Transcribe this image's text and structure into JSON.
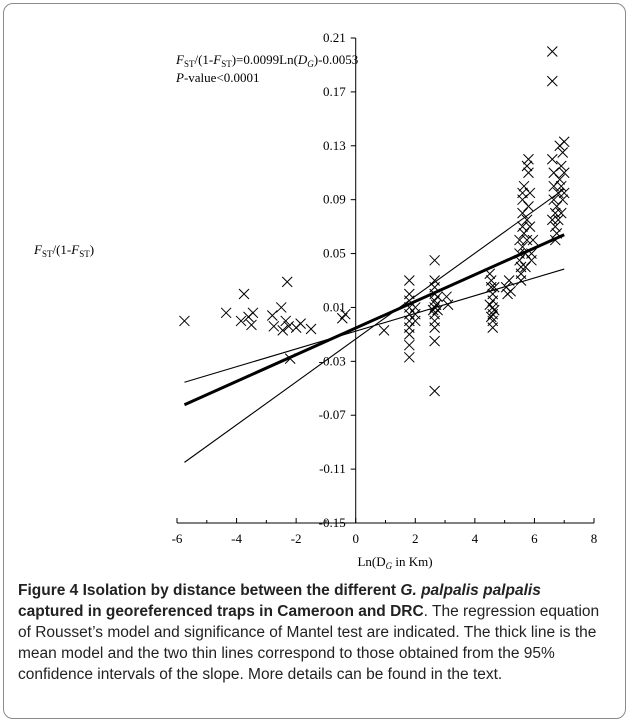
{
  "chart_data": {
    "type": "scatter",
    "ylabel": {
      "pre": "F",
      "sub": "ST",
      "mid": "/(1-",
      "pre2": "F",
      "sub2": "ST",
      "post": ")"
    },
    "xlabel": {
      "pre": "Ln(D",
      "sub": "G",
      "post": " in Km)"
    },
    "xlim": [
      -6,
      8
    ],
    "ylim": [
      -0.15,
      0.21
    ],
    "x_ticks": [
      "-6",
      "-4",
      "-2",
      "0",
      "2",
      "4",
      "6",
      "8"
    ],
    "y_ticks": [
      "0.21",
      "0.17",
      "0.13",
      "0.09",
      "0.05",
      "0.01",
      "-0.03",
      "-0.07",
      "-0.11",
      "-0.15"
    ],
    "annotation": {
      "equation": {
        "f1": "F",
        "s1": "ST",
        "m1": "/(1-",
        "f2": "F",
        "s2": "ST",
        "m2": ")=0.0099Ln(",
        "d": "D",
        "s3": "G",
        "m3": ")-0.0053"
      },
      "pvalue": {
        "p": "P",
        "rest": "-value<0.0001"
      }
    },
    "points": [
      [
        -5.75,
        0.0
      ],
      [
        -4.35,
        0.006
      ],
      [
        -3.85,
        0.0
      ],
      [
        -3.75,
        0.02
      ],
      [
        -3.6,
        0.003
      ],
      [
        -3.5,
        -0.003
      ],
      [
        -3.45,
        0.006
      ],
      [
        -2.8,
        0.004
      ],
      [
        -2.75,
        -0.004
      ],
      [
        -2.5,
        0.01
      ],
      [
        -2.45,
        -0.007
      ],
      [
        -2.35,
        0.0
      ],
      [
        -2.25,
        -0.004
      ],
      [
        -2.3,
        0.029
      ],
      [
        -2.2,
        -0.028
      ],
      [
        -2.0,
        -0.005
      ],
      [
        -1.85,
        -0.002
      ],
      [
        -1.5,
        -0.006
      ],
      [
        -0.45,
        0.002
      ],
      [
        -0.35,
        0.005
      ],
      [
        0.95,
        -0.007
      ],
      [
        1.8,
        0.03
      ],
      [
        1.8,
        0.02
      ],
      [
        1.8,
        0.015
      ],
      [
        1.8,
        0.01
      ],
      [
        1.8,
        0.005
      ],
      [
        1.8,
        0.0
      ],
      [
        1.8,
        -0.005
      ],
      [
        1.8,
        -0.01
      ],
      [
        1.8,
        -0.018
      ],
      [
        1.8,
        -0.027
      ],
      [
        2.0,
        0.01
      ],
      [
        2.0,
        0.005
      ],
      [
        2.0,
        0.0
      ],
      [
        2.65,
        0.045
      ],
      [
        2.65,
        0.03
      ],
      [
        2.65,
        0.025
      ],
      [
        2.65,
        0.02
      ],
      [
        2.65,
        0.015
      ],
      [
        2.65,
        0.01
      ],
      [
        2.65,
        0.005
      ],
      [
        2.65,
        0.0
      ],
      [
        2.65,
        -0.005
      ],
      [
        2.65,
        -0.015
      ],
      [
        2.65,
        -0.052
      ],
      [
        2.6,
        0.008
      ],
      [
        2.7,
        0.012
      ],
      [
        2.75,
        0.018
      ],
      [
        2.75,
        0.008
      ],
      [
        3.05,
        0.018
      ],
      [
        3.1,
        0.012
      ],
      [
        4.5,
        0.035
      ],
      [
        4.55,
        0.03
      ],
      [
        4.55,
        0.025
      ],
      [
        4.6,
        0.02
      ],
      [
        4.6,
        0.015
      ],
      [
        4.6,
        0.01
      ],
      [
        4.6,
        0.005
      ],
      [
        4.6,
        0.0
      ],
      [
        4.6,
        -0.005
      ],
      [
        4.5,
        0.012
      ],
      [
        4.65,
        0.008
      ],
      [
        4.55,
        0.003
      ],
      [
        4.65,
        0.025
      ],
      [
        5.05,
        0.025
      ],
      [
        5.1,
        0.02
      ],
      [
        5.15,
        0.03
      ],
      [
        5.2,
        0.022
      ],
      [
        5.5,
        0.06
      ],
      [
        5.5,
        0.05
      ],
      [
        5.5,
        0.045
      ],
      [
        5.55,
        0.04
      ],
      [
        5.55,
        0.035
      ],
      [
        5.55,
        0.03
      ],
      [
        5.6,
        0.055
      ],
      [
        5.6,
        0.07
      ],
      [
        5.6,
        0.08
      ],
      [
        5.6,
        0.09
      ],
      [
        5.65,
        0.1
      ],
      [
        5.65,
        0.065
      ],
      [
        5.7,
        0.04
      ],
      [
        5.7,
        0.05
      ],
      [
        5.75,
        0.06
      ],
      [
        5.75,
        0.075
      ],
      [
        5.8,
        0.085
      ],
      [
        5.8,
        0.11
      ],
      [
        5.8,
        0.12
      ],
      [
        5.85,
        0.095
      ],
      [
        5.85,
        0.07
      ],
      [
        5.9,
        0.05
      ],
      [
        5.9,
        0.045
      ],
      [
        5.95,
        0.06
      ],
      [
        5.6,
        0.095
      ],
      [
        5.75,
        0.115
      ],
      [
        6.6,
        0.2
      ],
      [
        6.6,
        0.178
      ],
      [
        6.6,
        0.12
      ],
      [
        6.65,
        0.11
      ],
      [
        6.65,
        0.1
      ],
      [
        6.65,
        0.09
      ],
      [
        6.7,
        0.08
      ],
      [
        6.7,
        0.07
      ],
      [
        6.7,
        0.06
      ],
      [
        6.75,
        0.085
      ],
      [
        6.8,
        0.095
      ],
      [
        6.8,
        0.075
      ],
      [
        6.85,
        0.13
      ],
      [
        6.85,
        0.105
      ],
      [
        6.9,
        0.115
      ],
      [
        6.9,
        0.1
      ],
      [
        6.95,
        0.125
      ],
      [
        6.95,
        0.09
      ],
      [
        7.0,
        0.133
      ],
      [
        7.0,
        0.11
      ],
      [
        7.0,
        0.095
      ],
      [
        6.6,
        0.075
      ],
      [
        6.75,
        0.065
      ],
      [
        6.9,
        0.08
      ]
    ],
    "lines": [
      {
        "role": "mean",
        "x": [
          -5.75,
          7.0
        ],
        "y": [
          -0.0622,
          0.064
        ],
        "thick": true
      },
      {
        "role": "ci-upper-slope",
        "x": [
          -5.75,
          7.0
        ],
        "y": [
          -0.105,
          0.098
        ],
        "thick": false
      },
      {
        "role": "ci-lower-slope",
        "x": [
          -5.75,
          7.0
        ],
        "y": [
          -0.0455,
          0.0385
        ],
        "thick": false
      }
    ]
  },
  "caption": {
    "bold_a": "Figure 4 Isolation by distance between the different ",
    "bold_italic": "G. palpalis palpalis",
    "bold_b": " captured in georeferenced traps in Cameroon and DRC",
    "text": ". The regression equation of Rousset’s model and significance of Mantel test are indicated. The thick line is the mean model and the two thin lines correspond to those obtained from the 95% confidence intervals of the slope. More details can be found in the text."
  }
}
